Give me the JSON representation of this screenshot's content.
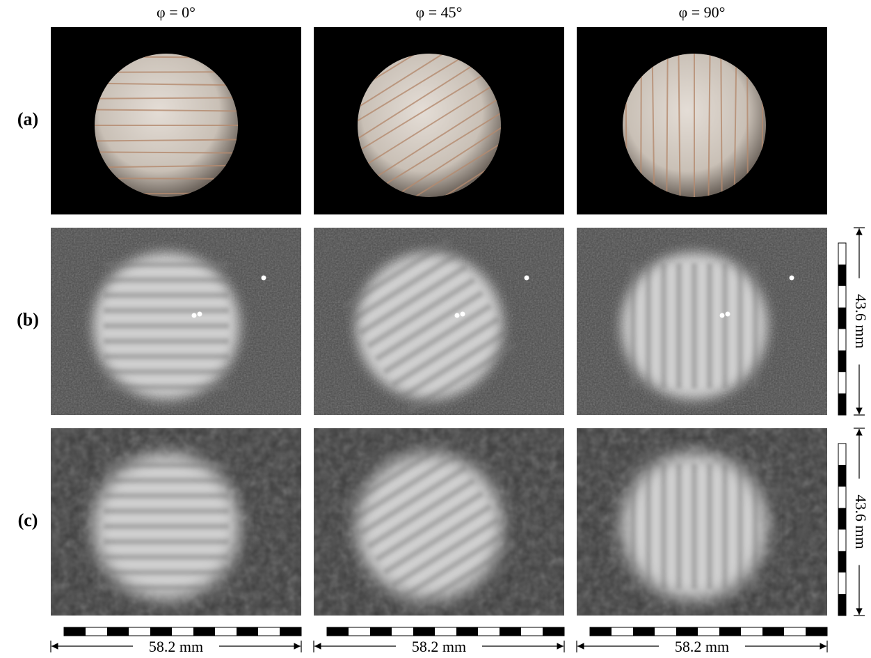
{
  "column_headers": [
    "φ = 0°",
    "φ = 45°",
    "φ = 90°"
  ],
  "row_labels": [
    "(a)",
    "(b)",
    "(c)"
  ],
  "scale_bars": {
    "horizontal": "58.2 mm",
    "vertical": "43.6 mm"
  }
}
